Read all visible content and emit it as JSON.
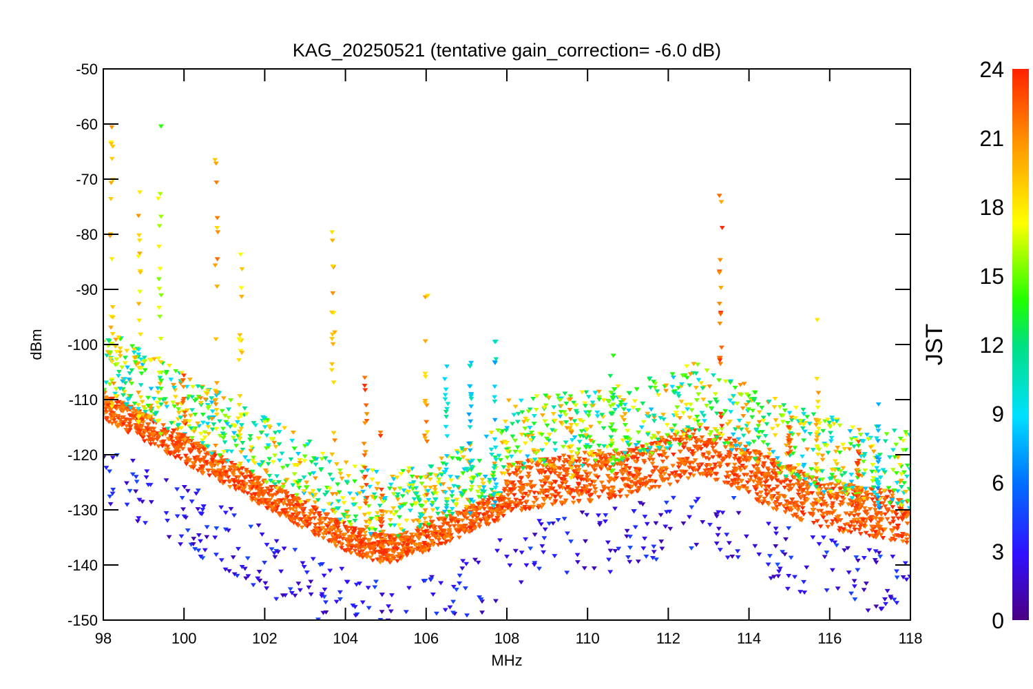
{
  "chart_data": {
    "type": "scatter",
    "title": "KAG_20250521 (tentative gain_correction= -6.0 dB)",
    "xlabel": "MHz",
    "ylabel": "dBm",
    "xlim": [
      98,
      118
    ],
    "ylim": [
      -150,
      -50
    ],
    "x_ticks": [
      "98",
      "100",
      "102",
      "104",
      "106",
      "108",
      "110",
      "112",
      "114",
      "116",
      "118"
    ],
    "y_ticks": [
      "-50",
      "-60",
      "-70",
      "-80",
      "-90",
      "-100",
      "-110",
      "-120",
      "-130",
      "-140",
      "-150"
    ],
    "colorbar": {
      "label": "JST",
      "range": [
        0,
        24
      ],
      "ticks": [
        "0",
        "3",
        "6",
        "9",
        "12",
        "15",
        "18",
        "21",
        "24"
      ],
      "colormap": "rainbow"
    },
    "marker": "triangle-down",
    "series": [
      {
        "points_from_24h_sweeps": true,
        "noise_floor_dBm": [
          {
            "x": 98.0,
            "y": -111
          },
          {
            "x": 99.0,
            "y": -115
          },
          {
            "x": 100.0,
            "y": -119
          },
          {
            "x": 101.0,
            "y": -123
          },
          {
            "x": 102.0,
            "y": -127
          },
          {
            "x": 103.0,
            "y": -131
          },
          {
            "x": 104.0,
            "y": -135
          },
          {
            "x": 104.8,
            "y": -137
          },
          {
            "x": 105.2,
            "y": -137
          },
          {
            "x": 106.0,
            "y": -135
          },
          {
            "x": 107.0,
            "y": -132
          },
          {
            "x": 107.9,
            "y": -129
          },
          {
            "x": 108.0,
            "y": -126
          },
          {
            "x": 109.0,
            "y": -125
          },
          {
            "x": 110.0,
            "y": -124
          },
          {
            "x": 111.0,
            "y": -123
          },
          {
            "x": 112.0,
            "y": -121
          },
          {
            "x": 112.8,
            "y": -119
          },
          {
            "x": 113.5,
            "y": -121
          },
          {
            "x": 114.5,
            "y": -125
          },
          {
            "x": 115.5,
            "y": -128
          },
          {
            "x": 116.5,
            "y": -130
          },
          {
            "x": 117.5,
            "y": -131
          },
          {
            "x": 118.0,
            "y": -132
          }
        ],
        "carriers": [
          {
            "x": 98.2,
            "peak_dBm": -57,
            "hour": 20
          },
          {
            "x": 98.9,
            "peak_dBm": -70,
            "hour": 20
          },
          {
            "x": 99.4,
            "peak_dBm": -52,
            "hour": 17
          },
          {
            "x": 100.0,
            "peak_dBm": -101,
            "hour": 23
          },
          {
            "x": 100.8,
            "peak_dBm": -62,
            "hour": 21
          },
          {
            "x": 101.4,
            "peak_dBm": -79,
            "hour": 20
          },
          {
            "x": 103.7,
            "peak_dBm": -69,
            "hour": 21
          },
          {
            "x": 104.5,
            "peak_dBm": -105,
            "hour": 23
          },
          {
            "x": 104.9,
            "peak_dBm": -115,
            "hour": 23
          },
          {
            "x": 106.0,
            "peak_dBm": -86,
            "hour": 21
          },
          {
            "x": 106.5,
            "peak_dBm": -100,
            "hour": 11
          },
          {
            "x": 107.1,
            "peak_dBm": -94,
            "hour": 10
          },
          {
            "x": 107.7,
            "peak_dBm": -95,
            "hour": 10
          },
          {
            "x": 109.6,
            "peak_dBm": -104,
            "hour": 21
          },
          {
            "x": 110.6,
            "peak_dBm": -100,
            "hour": 15
          },
          {
            "x": 113.3,
            "peak_dBm": -70,
            "hour": 23
          },
          {
            "x": 115.0,
            "peak_dBm": -113,
            "hour": 23
          },
          {
            "x": 115.7,
            "peak_dBm": -90,
            "hour": 20
          },
          {
            "x": 116.7,
            "peak_dBm": -114,
            "hour": 23
          },
          {
            "x": 117.2,
            "peak_dBm": -110,
            "hour": 9
          }
        ]
      }
    ]
  }
}
